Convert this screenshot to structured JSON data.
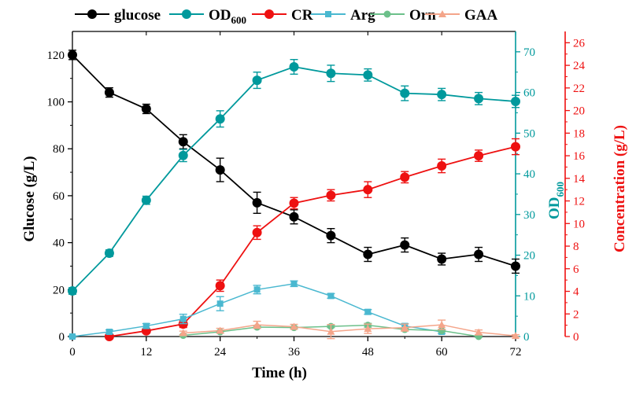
{
  "colors": {
    "glucose": "#000000",
    "od600": "#00999c",
    "cr": "#ee1111",
    "arg": "#4ab8d0",
    "orn": "#6cc08a",
    "gaa": "#f4a58a"
  },
  "chart_data": {
    "type": "line",
    "x": [
      0,
      6,
      12,
      18,
      24,
      30,
      36,
      42,
      48,
      54,
      60,
      66,
      72
    ],
    "xlabel": "Time (h)",
    "xlim": [
      0,
      72
    ],
    "xticks": [
      "0",
      "12",
      "24",
      "36",
      "48",
      "60",
      "72"
    ],
    "axes": {
      "left": {
        "label": "Glucose (g/L)",
        "ylim": [
          0,
          130
        ],
        "ticks": [
          "0",
          "20",
          "40",
          "60",
          "80",
          "100",
          "120"
        ],
        "color": "#000000"
      },
      "right1": {
        "label_main": "OD",
        "label_sub": "600",
        "ylim": [
          0,
          75
        ],
        "ticks": [
          "0",
          "10",
          "20",
          "30",
          "40",
          "50",
          "60",
          "70"
        ],
        "color": "#00999c"
      },
      "right2": {
        "label": "Concentration (g/L)",
        "ylim": [
          0,
          27
        ],
        "ticks": [
          "0",
          "2",
          "4",
          "6",
          "8",
          "10",
          "12",
          "14",
          "16",
          "18",
          "20",
          "22",
          "24",
          "26"
        ],
        "color": "#ee1111"
      }
    },
    "legend_position": "top",
    "series": [
      {
        "key": "glucose",
        "name": "glucose",
        "axis": "left",
        "marker": "circle",
        "x": [
          0,
          6,
          12,
          18,
          24,
          30,
          36,
          42,
          48,
          54,
          60,
          66,
          72
        ],
        "values": [
          120,
          104,
          97,
          83,
          71,
          57,
          51,
          43,
          35,
          39,
          33,
          35,
          30
        ],
        "errors": [
          2,
          2,
          2,
          3,
          5,
          4.5,
          3,
          3,
          3,
          3,
          2.5,
          3,
          3
        ]
      },
      {
        "key": "od600",
        "name_main": "OD",
        "name_sub": "600",
        "axis": "right1",
        "marker": "circle",
        "x": [
          0,
          6,
          12,
          18,
          24,
          30,
          36,
          42,
          48,
          54,
          60,
          66,
          72
        ],
        "values": [
          11.2,
          20.5,
          33.5,
          44.5,
          53.5,
          63,
          66.3,
          64.7,
          64.3,
          59.8,
          59.5,
          58.5,
          57.8
        ],
        "errors": [
          0.8,
          0.8,
          1,
          1.5,
          2,
          2,
          1.8,
          2,
          1.5,
          1.8,
          1.5,
          1.5,
          1.5
        ]
      },
      {
        "key": "cr",
        "name": "CR",
        "axis": "right2",
        "marker": "circle",
        "x": [
          6,
          12,
          18,
          24,
          30,
          36,
          42,
          48,
          54,
          60,
          66,
          72
        ],
        "values": [
          0,
          0.5,
          1.1,
          4.5,
          9.2,
          11.8,
          12.5,
          13,
          14.1,
          15.1,
          16,
          16.8
        ],
        "errors": [
          0.1,
          0.2,
          0.3,
          0.5,
          0.6,
          0.5,
          0.5,
          0.7,
          0.5,
          0.6,
          0.5,
          0.7
        ]
      },
      {
        "key": "arg",
        "name": "Arg",
        "axis": "left",
        "marker": "square",
        "x": [
          0,
          6,
          12,
          18,
          24,
          30,
          36,
          42,
          48,
          54,
          60
        ],
        "values": [
          0,
          2,
          4.5,
          7.5,
          14,
          20,
          22.5,
          17.3,
          10.5,
          4.5,
          2
        ],
        "errors": [
          0.3,
          0.8,
          1,
          2,
          3,
          1.8,
          1.2,
          1,
          1,
          1,
          0.8
        ]
      },
      {
        "key": "orn",
        "name": "Orn",
        "axis": "left",
        "marker": "circle",
        "x": [
          18,
          24,
          30,
          36,
          42,
          48,
          54,
          60,
          66
        ],
        "values": [
          0.5,
          2,
          4,
          3.8,
          4.3,
          4.8,
          3,
          2.5,
          0
        ],
        "errors": [
          0.3,
          0.5,
          0.5,
          0.5,
          0.5,
          0.8,
          0.5,
          0.5,
          0.3
        ]
      },
      {
        "key": "gaa",
        "name": "GAA",
        "axis": "left",
        "marker": "triangle",
        "x": [
          18,
          24,
          30,
          36,
          42,
          48,
          54,
          60,
          66,
          72
        ],
        "values": [
          1.5,
          2.5,
          5,
          4.2,
          2.1,
          3.3,
          3.8,
          5,
          1.8,
          0.3
        ],
        "errors": [
          0.8,
          1,
          1.5,
          1,
          3,
          2,
          1.5,
          2,
          1,
          0.5
        ]
      }
    ]
  }
}
